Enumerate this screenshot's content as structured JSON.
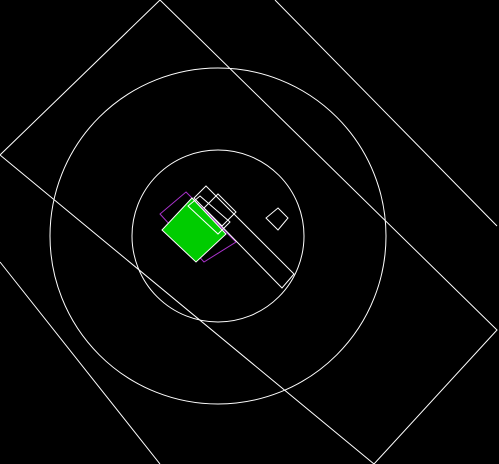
{
  "canvas": {
    "background_color": "#000000",
    "line_color": "#ffffff",
    "highlight_fill_color": "#00cc00",
    "selection_outline_color": "#aa33cc"
  },
  "objects": [
    {
      "name": "outer-rotated-square",
      "kind": "square",
      "stroke": "white"
    },
    {
      "name": "outer-circle",
      "kind": "circle",
      "stroke": "white"
    },
    {
      "name": "inner-circle",
      "kind": "circle",
      "stroke": "white"
    },
    {
      "name": "green-block",
      "kind": "filled-rectangle",
      "fill": "green"
    },
    {
      "name": "selection-box",
      "kind": "rectangle",
      "stroke": "purple"
    },
    {
      "name": "long-arm",
      "kind": "rectangle",
      "stroke": "white"
    },
    {
      "name": "small-diamond",
      "kind": "square",
      "stroke": "white"
    }
  ]
}
